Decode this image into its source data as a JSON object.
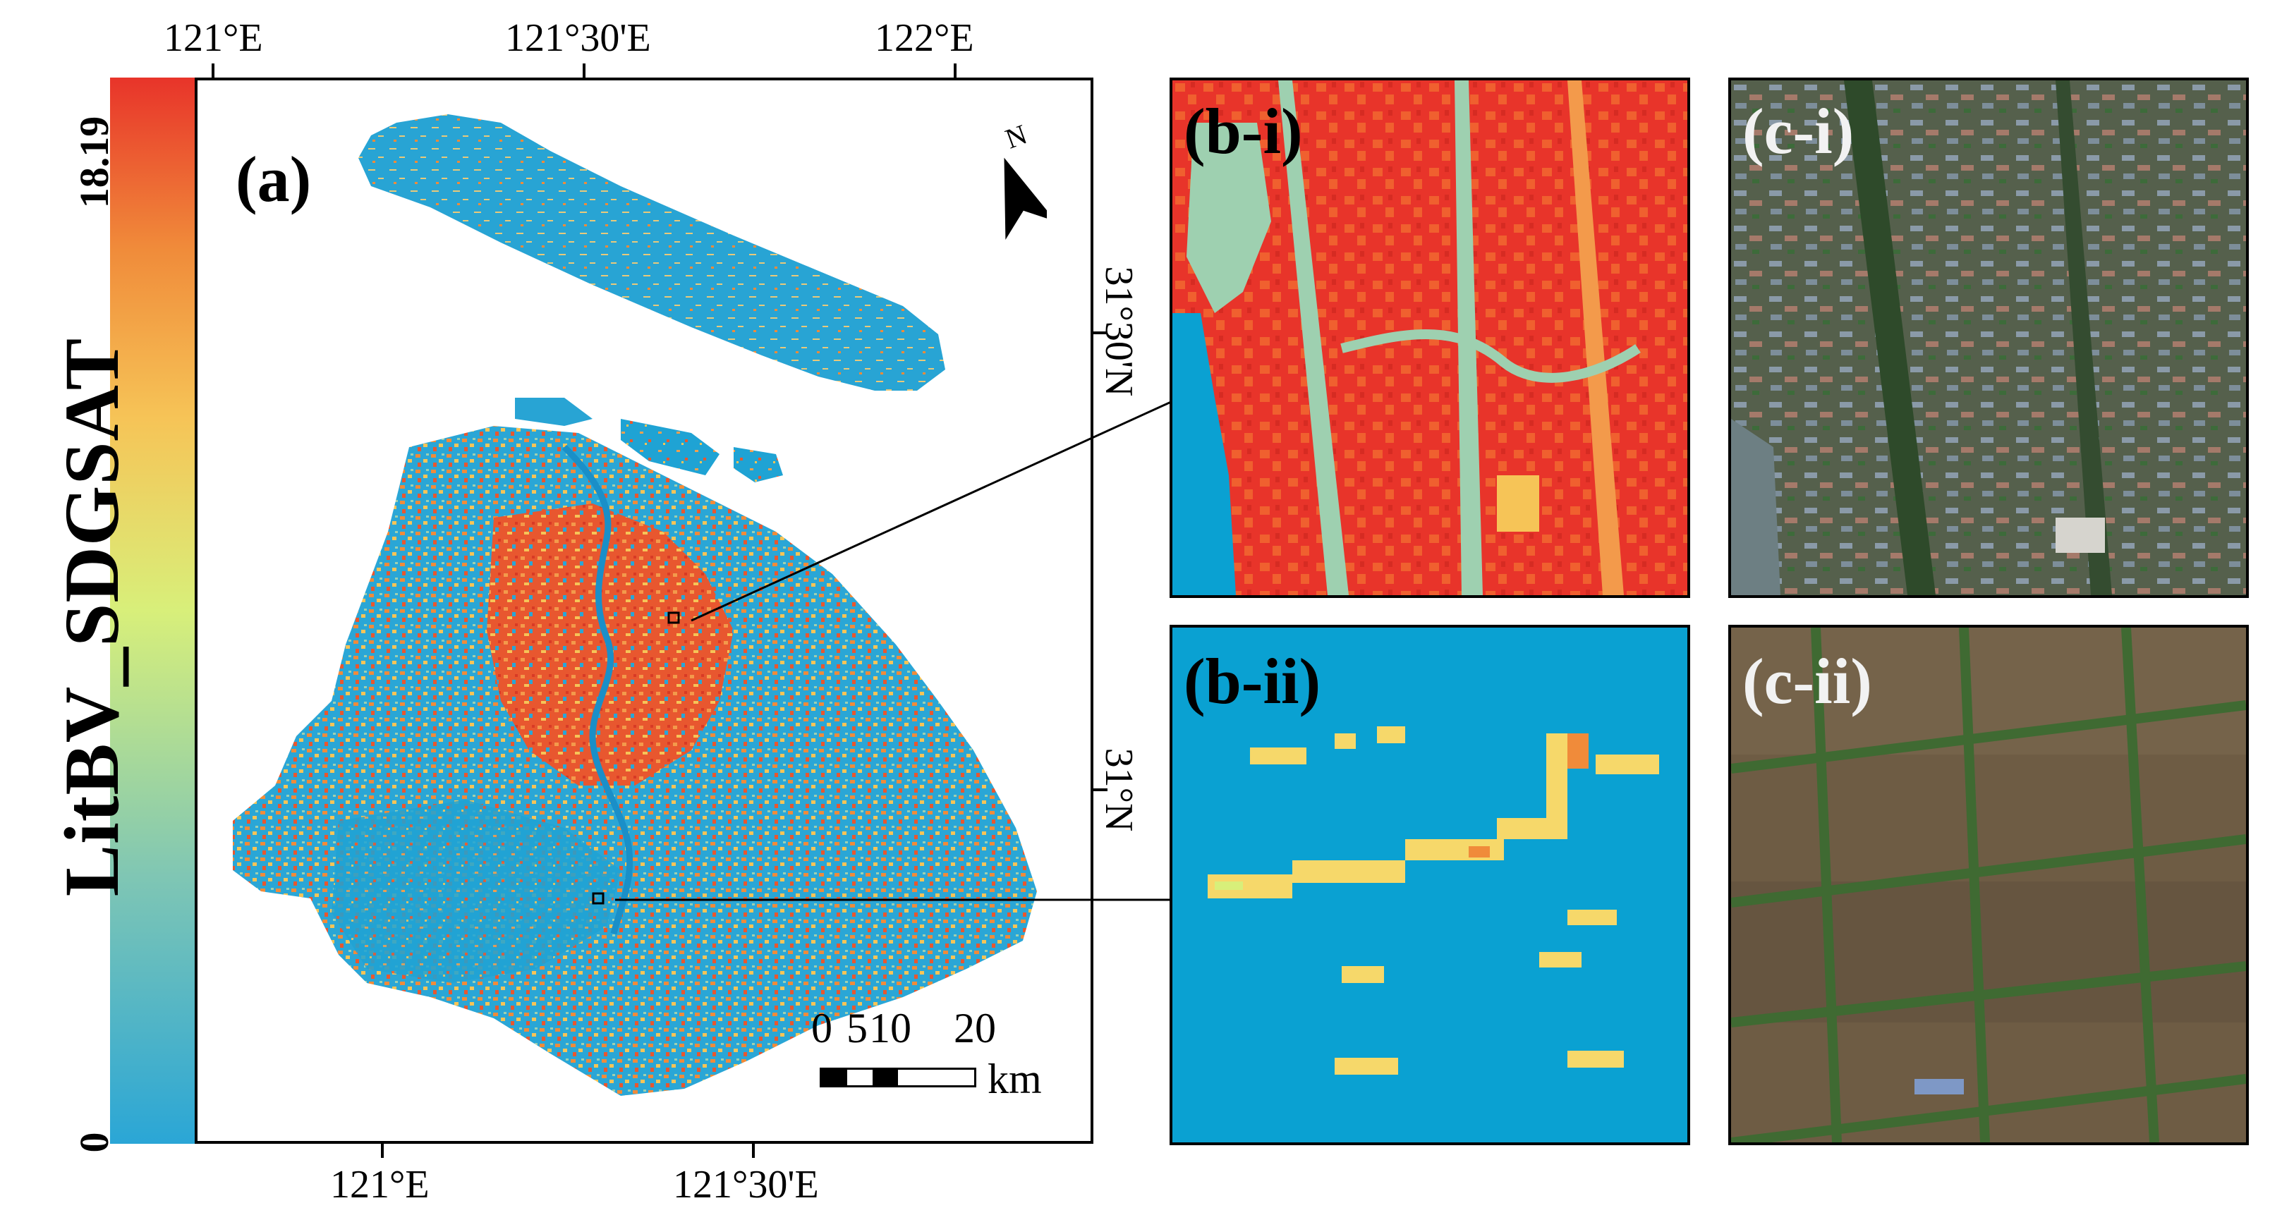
{
  "colorbar": {
    "title": "LitBV_SDGSAT",
    "max_label": "18.19",
    "min_label": "0",
    "colors": [
      "#2aa6d6",
      "#7fc6b4",
      "#d8ef7a",
      "#f6c457",
      "#f08b3a",
      "#e8342a"
    ]
  },
  "main_map": {
    "label": "(a)",
    "top_ticks": [
      "121°E",
      "121°30'E",
      "122°E"
    ],
    "bottom_ticks": [
      "121°E",
      "121°30'E"
    ],
    "right_ticks": [
      "31°30'N",
      "31°N"
    ],
    "north_label": "N",
    "scale": {
      "numbers": [
        "0",
        "5",
        "10",
        "20"
      ],
      "unit": "km"
    }
  },
  "panels": [
    {
      "label": "(b-i)",
      "kind": "urban-litbv"
    },
    {
      "label": "(b-ii)",
      "kind": "rural-litbv"
    },
    {
      "label": "(c-i)",
      "kind": "urban-satellite"
    },
    {
      "label": "(c-ii)",
      "kind": "rural-satellite"
    }
  ],
  "colors": {
    "water": "#0aa1d2",
    "high": "#e8342a",
    "mid": "#f0a050",
    "low": "#9ed0b0"
  }
}
